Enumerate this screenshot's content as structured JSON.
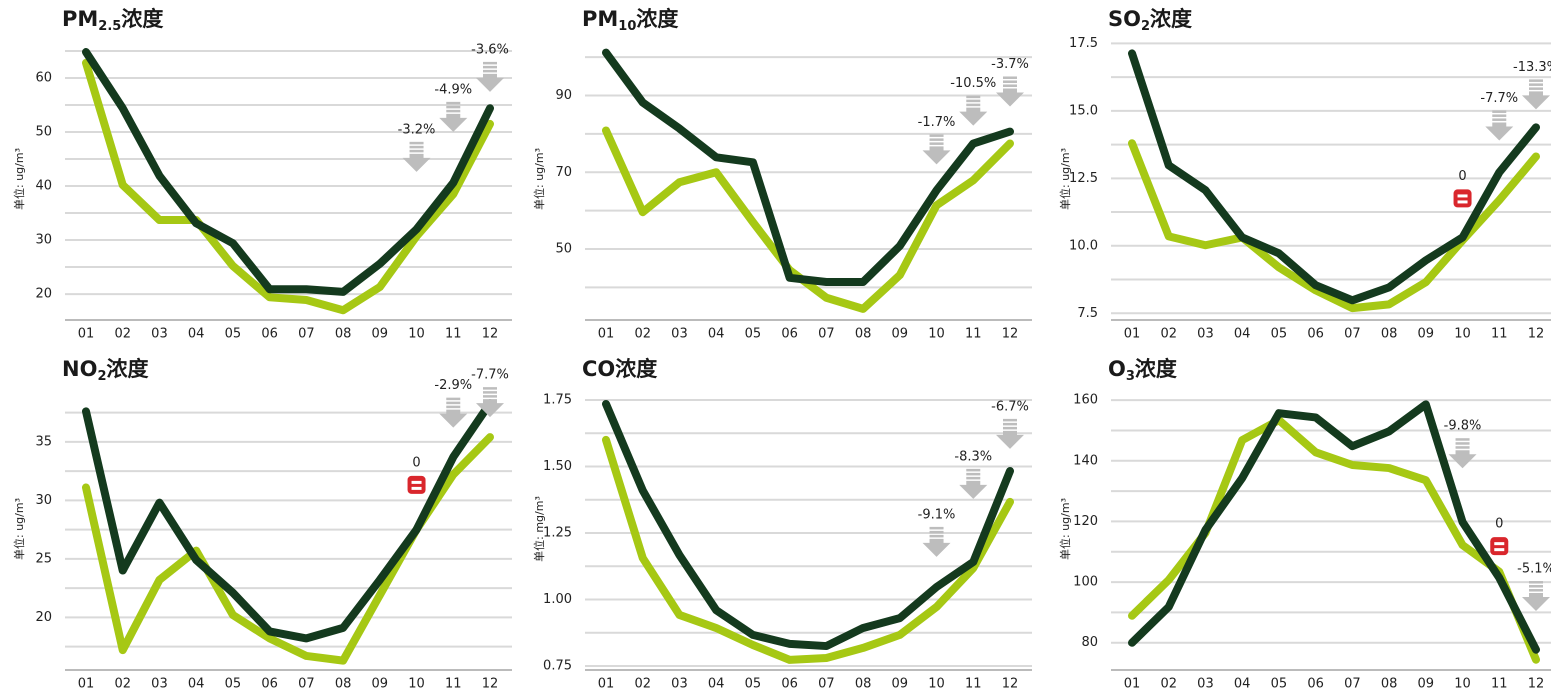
{
  "chart_data": [
    {
      "type": "line",
      "title": [
        "PM",
        "2.5",
        "浓度"
      ],
      "ylabel": "单位: ug/m³",
      "categories": [
        "01",
        "02",
        "03",
        "04",
        "05",
        "06",
        "07",
        "08",
        "09",
        "10",
        "11",
        "12"
      ],
      "ylim": [
        15.2,
        67.4
      ],
      "yticks": [
        20,
        30,
        40,
        50,
        60
      ],
      "grid": true,
      "series": [
        {
          "color": "#a6c814",
          "values": [
            62.8,
            40.2,
            33.7,
            33.7,
            25.2,
            19.4,
            18.9,
            17.0,
            21.3,
            30.7,
            38.5,
            51.5
          ]
        },
        {
          "color": "#143a1e",
          "values": [
            64.8,
            54.4,
            41.9,
            33.1,
            29.4,
            20.9,
            20.9,
            20.4,
            25.6,
            32.0,
            40.6,
            54.4
          ]
        }
      ],
      "annotations": [
        {
          "x": "10",
          "y": 50.4,
          "label": "-3.2%",
          "icon": "down"
        },
        {
          "x": "11",
          "y": 57.8,
          "label": "-4.9%",
          "icon": "down"
        },
        {
          "x": "12",
          "y": 65.2,
          "label": "-3.6%",
          "icon": "down"
        }
      ]
    },
    {
      "type": "line",
      "title": [
        "PM",
        "10",
        "浓度"
      ],
      "ylabel": "单位: ug/m³",
      "categories": [
        "01",
        "02",
        "03",
        "04",
        "05",
        "06",
        "07",
        "08",
        "09",
        "10",
        "11",
        "12"
      ],
      "ylim": [
        31.5,
        105
      ],
      "yticks": [
        50,
        70,
        90
      ],
      "grid": true,
      "series": [
        {
          "color": "#a6c814",
          "values": [
            80.9,
            59.6,
            67.4,
            70.0,
            57.0,
            44.5,
            37.3,
            34.4,
            43.2,
            61.4,
            67.9,
            77.5
          ]
        },
        {
          "color": "#143a1e",
          "values": [
            101.2,
            88.2,
            81.4,
            73.9,
            72.6,
            42.5,
            41.4,
            41.4,
            50.8,
            65.3,
            77.5,
            80.6
          ]
        }
      ],
      "annotations": [
        {
          "x": "10",
          "y": 83,
          "label": "-1.7%",
          "icon": "down"
        },
        {
          "x": "11",
          "y": 93.1,
          "label": "-10.5%",
          "icon": "down"
        },
        {
          "x": "12",
          "y": 98.1,
          "label": "-3.7%",
          "icon": "down"
        }
      ]
    },
    {
      "type": "line",
      "title": [
        "SO",
        "2",
        "浓度"
      ],
      "ylabel": "单位: ug/m³",
      "categories": [
        "01",
        "02",
        "03",
        "04",
        "05",
        "06",
        "07",
        "08",
        "09",
        "10",
        "11",
        "12"
      ],
      "ylim": [
        7.25,
        17.7
      ],
      "yticks": [
        7.5,
        {
          "value": 10,
          "label": "10.0"
        },
        12.5,
        {
          "value": 15,
          "label": "15.0"
        },
        17.5
      ],
      "grid": true,
      "series": [
        {
          "color": "#a6c814",
          "values": [
            13.8,
            10.35,
            10.02,
            10.31,
            9.2,
            8.35,
            7.69,
            7.83,
            8.65,
            10.2,
            11.69,
            13.31
          ]
        },
        {
          "color": "#143a1e",
          "values": [
            17.13,
            12.98,
            12.06,
            10.31,
            9.72,
            8.54,
            7.98,
            8.46,
            9.46,
            10.31,
            12.72,
            14.39
          ]
        }
      ],
      "annotations": [
        {
          "x": "10",
          "y": 12.57,
          "label": "0",
          "icon": "equal"
        },
        {
          "x": "11",
          "y": 15.46,
          "label": "-7.7%",
          "icon": "down"
        },
        {
          "x": "12",
          "y": 16.61,
          "label": "-13.3%",
          "icon": "down"
        }
      ]
    },
    {
      "type": "line",
      "title": [
        "NO",
        "2",
        "浓度"
      ],
      "ylabel": "单位: ug/m³",
      "categories": [
        "01",
        "02",
        "03",
        "04",
        "05",
        "06",
        "07",
        "08",
        "09",
        "10",
        "11",
        "12"
      ],
      "ylim": [
        15.5,
        39.6
      ],
      "yticks": [
        20,
        25,
        30,
        35
      ],
      "grid": true,
      "series": [
        {
          "color": "#a6c814",
          "values": [
            31.1,
            17.2,
            23.2,
            25.7,
            20.2,
            18.2,
            16.7,
            16.3,
            21.9,
            27.5,
            32.2,
            35.4
          ]
        },
        {
          "color": "#143a1e",
          "values": [
            37.6,
            24.0,
            29.8,
            24.9,
            22.1,
            18.8,
            18.2,
            19.1,
            23.2,
            27.5,
            33.7,
            38.3
          ]
        }
      ],
      "annotations": [
        {
          "x": "10",
          "y": 33.2,
          "label": "0",
          "icon": "equal"
        },
        {
          "x": "11",
          "y": 39.8,
          "label": "-2.9%",
          "icon": "down"
        },
        {
          "x": "12",
          "y": 40.7,
          "label": "-7.7%",
          "icon": "down"
        }
      ]
    },
    {
      "type": "line",
      "title": [
        "CO浓度"
      ],
      "ylabel": "单位: mg/m³",
      "categories": [
        "01",
        "02",
        "03",
        "04",
        "05",
        "06",
        "07",
        "08",
        "09",
        "10",
        "11",
        "12"
      ],
      "ylim": [
        0.735,
        1.795
      ],
      "yticks": [
        0.75,
        {
          "value": 1,
          "label": "1.00"
        },
        1.25,
        {
          "value": 1.5,
          "label": "1.50"
        },
        1.75
      ],
      "grid": true,
      "series": [
        {
          "color": "#a6c814",
          "values": [
            1.6,
            1.156,
            0.942,
            0.893,
            0.829,
            0.773,
            0.78,
            0.818,
            0.867,
            0.972,
            1.118,
            1.367
          ]
        },
        {
          "color": "#143a1e",
          "values": [
            1.735,
            1.41,
            1.167,
            0.96,
            0.867,
            0.833,
            0.825,
            0.893,
            0.93,
            1.047,
            1.141,
            1.483
          ]
        }
      ],
      "annotations": [
        {
          "x": "10",
          "y": 1.318,
          "label": "-9.1%",
          "icon": "down"
        },
        {
          "x": "11",
          "y": 1.536,
          "label": "-8.3%",
          "icon": "down"
        },
        {
          "x": "12",
          "y": 1.724,
          "label": "-6.7%",
          "icon": "down"
        }
      ]
    },
    {
      "type": "line",
      "title": [
        "O",
        "3",
        "浓度"
      ],
      "ylabel": "单位: ug/m³",
      "categories": [
        "01",
        "02",
        "03",
        "04",
        "05",
        "06",
        "07",
        "08",
        "09",
        "10",
        "11",
        "12"
      ],
      "ylim": [
        71,
        164
      ],
      "yticks": [
        80,
        100,
        120,
        140,
        160
      ],
      "grid": true,
      "series": [
        {
          "color": "#a6c814",
          "values": [
            88.9,
            100.7,
            116.2,
            146.8,
            153.4,
            142.8,
            138.6,
            137.6,
            133.6,
            112.2,
            103.4,
            74.4
          ]
        },
        {
          "color": "#143a1e",
          "values": [
            80,
            91.8,
            117.2,
            134.3,
            155.7,
            154.3,
            144.8,
            149.7,
            158.6,
            119.8,
            101.4,
            77.7
          ]
        }
      ],
      "annotations": [
        {
          "x": "10",
          "y": 151.4,
          "label": "-9.8%",
          "icon": "down"
        },
        {
          "x": "11",
          "y": 119.1,
          "label": "0",
          "icon": "equal"
        },
        {
          "x": "12",
          "y": 104.3,
          "label": "-5.1%",
          "icon": "down"
        }
      ]
    }
  ]
}
